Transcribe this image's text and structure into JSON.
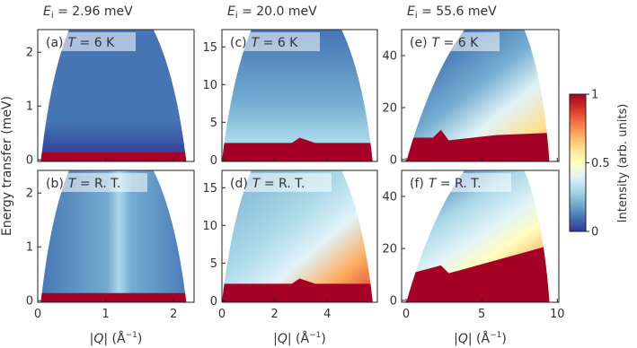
{
  "column_titles": [
    {
      "symbol": "E",
      "subscript": "i",
      "text": " = 2.96 meV"
    },
    {
      "symbol": "E",
      "subscript": "i",
      "text": " = 20.0 meV"
    },
    {
      "symbol": "E",
      "subscript": "i",
      "text": " = 55.6 meV"
    }
  ],
  "y_label": "Energy transfer (meV)",
  "colorbar": {
    "type": "colorbar",
    "label": "Intensity (arb. units)",
    "clim": [
      0,
      1
    ],
    "ticks": [
      0,
      0.5,
      1
    ],
    "colors": [
      "#313695",
      "#4575b4",
      "#74add1",
      "#abd9e9",
      "#e0f3f8",
      "#ffffbf",
      "#fee090",
      "#fdae61",
      "#f46d43",
      "#d73027",
      "#a50026"
    ]
  },
  "chart_data": [
    {
      "type": "heatmap",
      "panel": "(a)",
      "temperature": {
        "symbol": "T",
        "text": " = 6 K"
      },
      "xlim": [
        0,
        2.3
      ],
      "xticks": [
        0,
        1,
        2
      ],
      "ylim": [
        -0.03,
        2.42
      ],
      "yticks": [
        0,
        1,
        2
      ]
    },
    {
      "type": "heatmap",
      "panel": "(c)",
      "temperature": {
        "symbol": "T",
        "text": " = 6 K"
      },
      "xlim": [
        0,
        5.9
      ],
      "xticks": [
        0,
        2,
        4
      ],
      "ylim": [
        -0.2,
        17.3
      ],
      "yticks": [
        0,
        5,
        10,
        15
      ]
    },
    {
      "type": "heatmap",
      "panel": "(e)",
      "temperature": {
        "symbol": "T",
        "text": " = 6 K"
      },
      "xlim": [
        -0.3,
        10.1
      ],
      "xticks": [
        0,
        5,
        10
      ],
      "ylim": [
        -0.7,
        50
      ],
      "yticks": [
        0,
        20,
        40
      ]
    },
    {
      "type": "heatmap",
      "panel": "(b)",
      "temperature": {
        "symbol": "T",
        "text": " = R. T."
      },
      "xlim": [
        0,
        2.3
      ],
      "xticks": [
        0,
        1,
        2
      ],
      "ylim": [
        -0.03,
        2.42
      ],
      "yticks": [
        0,
        1,
        2
      ],
      "xlabel": [
        "|",
        "Q",
        "| (Å",
        "−1",
        ")"
      ]
    },
    {
      "type": "heatmap",
      "panel": "(d)",
      "temperature": {
        "symbol": "T",
        "text": " = R. T."
      },
      "xlim": [
        0,
        5.9
      ],
      "xticks": [
        0,
        2,
        4
      ],
      "ylim": [
        -0.2,
        17.3
      ],
      "yticks": [
        0,
        5,
        10,
        15
      ],
      "xlabel": [
        "|",
        "Q",
        "| (Å",
        "−1",
        ")"
      ]
    },
    {
      "type": "heatmap",
      "panel": "(f)",
      "temperature": {
        "symbol": "T",
        "text": " = R. T."
      },
      "xlim": [
        -0.3,
        10.1
      ],
      "xticks": [
        0,
        5,
        10
      ],
      "ylim": [
        -0.7,
        50
      ],
      "yticks": [
        0,
        20,
        40
      ],
      "xlabel": [
        "|",
        "Q",
        "| (Å",
        "−1",
        ")"
      ]
    }
  ]
}
